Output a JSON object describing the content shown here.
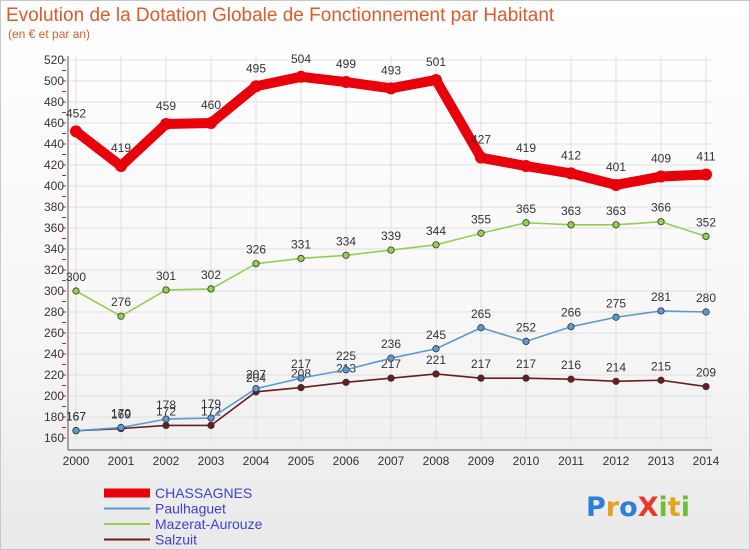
{
  "colors": {
    "CHASSAGNES": "#e8000b",
    "Paulhaguet": "#5b9bd5",
    "Mazerat-Aurouze": "#92d050",
    "Salzuit": "#6b1c1c",
    "title": "#e05a2a",
    "legend_text": "#4040d0",
    "grid": "#e0e0e0"
  },
  "chart_data": {
    "type": "line",
    "title": "Evolution de la Dotation Globale de Fonctionnement par Habitant",
    "subtitle": "(en € et par an)",
    "x": [
      2000,
      2001,
      2002,
      2003,
      2004,
      2005,
      2006,
      2007,
      2008,
      2009,
      2010,
      2011,
      2012,
      2013,
      2014
    ],
    "ylim": [
      160,
      520
    ],
    "ytick_step": 20,
    "grid": true,
    "legend_position": "bottom-left",
    "series": [
      {
        "name": "CHASSAGNES",
        "values": [
          452,
          419,
          459,
          460,
          495,
          504,
          499,
          493,
          501,
          427,
          419,
          412,
          401,
          409,
          411
        ]
      },
      {
        "name": "Paulhaguet",
        "values": [
          167,
          170,
          178,
          179,
          207,
          217,
          225,
          236,
          245,
          265,
          252,
          266,
          275,
          281,
          280
        ]
      },
      {
        "name": "Mazerat-Aurouze",
        "values": [
          300,
          276,
          301,
          302,
          326,
          331,
          334,
          339,
          344,
          355,
          365,
          363,
          363,
          366,
          352
        ]
      },
      {
        "name": "Salzuit",
        "values": [
          167,
          169,
          172,
          172,
          204,
          208,
          213,
          217,
          221,
          217,
          217,
          216,
          214,
          215,
          209
        ]
      }
    ]
  },
  "logo": {
    "text": "ProXiti"
  }
}
